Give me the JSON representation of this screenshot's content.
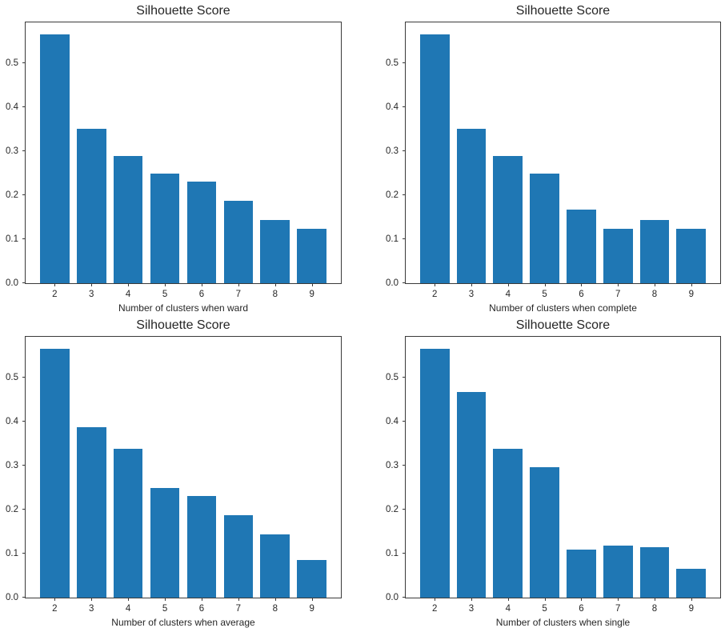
{
  "figure": {
    "background": "#ffffff",
    "bar_color": "#1f77b4",
    "axis_color": "#3a3a3a",
    "text_color": "#262626"
  },
  "chart_data": [
    {
      "type": "bar",
      "title": "Silhouette Score",
      "xlabel": "Number of clusters when ward",
      "ylabel": "",
      "categories": [
        2,
        3,
        4,
        5,
        6,
        7,
        8,
        9
      ],
      "values": [
        0.565,
        0.352,
        0.29,
        0.249,
        0.231,
        0.187,
        0.143,
        0.124
      ],
      "bar_width": 0.8,
      "xlim": [
        1.21,
        9.79
      ],
      "ylim": [
        0,
        0.593
      ],
      "yticks": [
        "0.0",
        "0.1",
        "0.2",
        "0.3",
        "0.4",
        "0.5"
      ],
      "grid": false,
      "legend": "none"
    },
    {
      "type": "bar",
      "title": "Silhouette Score",
      "xlabel": "Number of clusters when complete",
      "ylabel": "",
      "categories": [
        2,
        3,
        4,
        5,
        6,
        7,
        8,
        9
      ],
      "values": [
        0.565,
        0.352,
        0.29,
        0.249,
        0.168,
        0.124,
        0.143,
        0.124
      ],
      "bar_width": 0.8,
      "xlim": [
        1.21,
        9.79
      ],
      "ylim": [
        0,
        0.593
      ],
      "yticks": [
        "0.0",
        "0.1",
        "0.2",
        "0.3",
        "0.4",
        "0.5"
      ],
      "grid": false,
      "legend": "none"
    },
    {
      "type": "bar",
      "title": "Silhouette Score",
      "xlabel": "Number of clusters when average",
      "ylabel": "",
      "categories": [
        2,
        3,
        4,
        5,
        6,
        7,
        8,
        9
      ],
      "values": [
        0.565,
        0.388,
        0.339,
        0.249,
        0.231,
        0.187,
        0.143,
        0.086
      ],
      "bar_width": 0.8,
      "xlim": [
        1.21,
        9.79
      ],
      "ylim": [
        0,
        0.593
      ],
      "yticks": [
        "0.0",
        "0.1",
        "0.2",
        "0.3",
        "0.4",
        "0.5"
      ],
      "grid": false,
      "legend": "none"
    },
    {
      "type": "bar",
      "title": "Silhouette Score",
      "xlabel": "Number of clusters when single",
      "ylabel": "",
      "categories": [
        2,
        3,
        4,
        5,
        6,
        7,
        8,
        9
      ],
      "values": [
        0.565,
        0.467,
        0.339,
        0.297,
        0.109,
        0.118,
        0.114,
        0.066
      ],
      "bar_width": 0.8,
      "xlim": [
        1.21,
        9.79
      ],
      "ylim": [
        0,
        0.593
      ],
      "yticks": [
        "0.0",
        "0.1",
        "0.2",
        "0.3",
        "0.4",
        "0.5"
      ],
      "grid": false,
      "legend": "none"
    }
  ]
}
